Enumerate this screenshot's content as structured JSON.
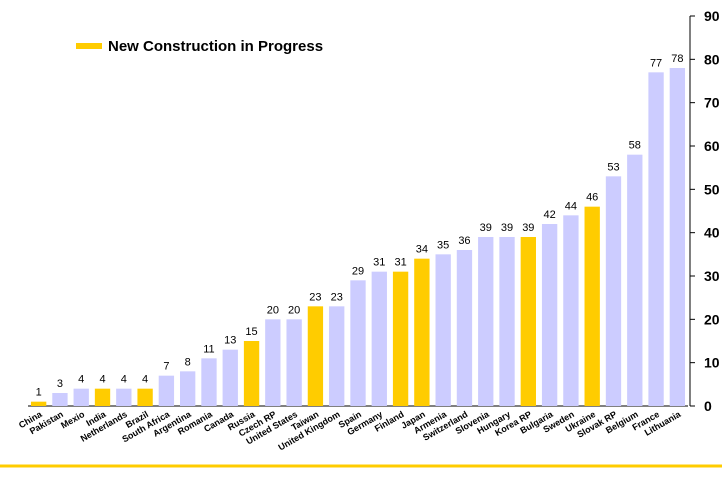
{
  "chart_data": {
    "type": "bar",
    "categories": [
      "China",
      "Pakistan",
      "Mexio",
      "India",
      "Netherlands",
      "Brazil",
      "South Africa",
      "Argentina",
      "Romania",
      "Canada",
      "Russia",
      "Czech RP",
      "United States",
      "Taiwan",
      "United Kingdom",
      "Spain",
      "Germany",
      "Finland",
      "Japan",
      "Armenia",
      "Switzerland",
      "Slovenia",
      "Hungary",
      "Korea RP",
      "Bulgaria",
      "Sweden",
      "Ukraine",
      "Slovak RP",
      "Belgium",
      "France",
      "Lithuania"
    ],
    "values": [
      1,
      3,
      4,
      4,
      4,
      4,
      7,
      8,
      11,
      13,
      15,
      20,
      20,
      23,
      23,
      29,
      31,
      31,
      34,
      35,
      36,
      39,
      39,
      39,
      42,
      44,
      46,
      53,
      58,
      77,
      78
    ],
    "colors": [
      "#ffcc00",
      "#ccccff",
      "#ccccff",
      "#ffcc00",
      "#ccccff",
      "#ffcc00",
      "#ccccff",
      "#ccccff",
      "#ccccff",
      "#ccccff",
      "#ffcc00",
      "#ccccff",
      "#ccccff",
      "#ffcc00",
      "#ccccff",
      "#ccccff",
      "#ccccff",
      "#ffcc00",
      "#ffcc00",
      "#ccccff",
      "#ccccff",
      "#ccccff",
      "#ccccff",
      "#ffcc00",
      "#ccccff",
      "#ccccff",
      "#ffcc00",
      "#ccccff",
      "#ccccff",
      "#ccccff",
      "#ccccff"
    ],
    "legend": {
      "name": "New Construction in Progress",
      "color": "#ffcc00"
    },
    "ylim": [
      0,
      90
    ],
    "yticks": [
      0,
      10,
      20,
      30,
      40,
      50,
      60,
      70,
      80,
      90
    ],
    "y_axis_side": "right",
    "grid": false
  }
}
